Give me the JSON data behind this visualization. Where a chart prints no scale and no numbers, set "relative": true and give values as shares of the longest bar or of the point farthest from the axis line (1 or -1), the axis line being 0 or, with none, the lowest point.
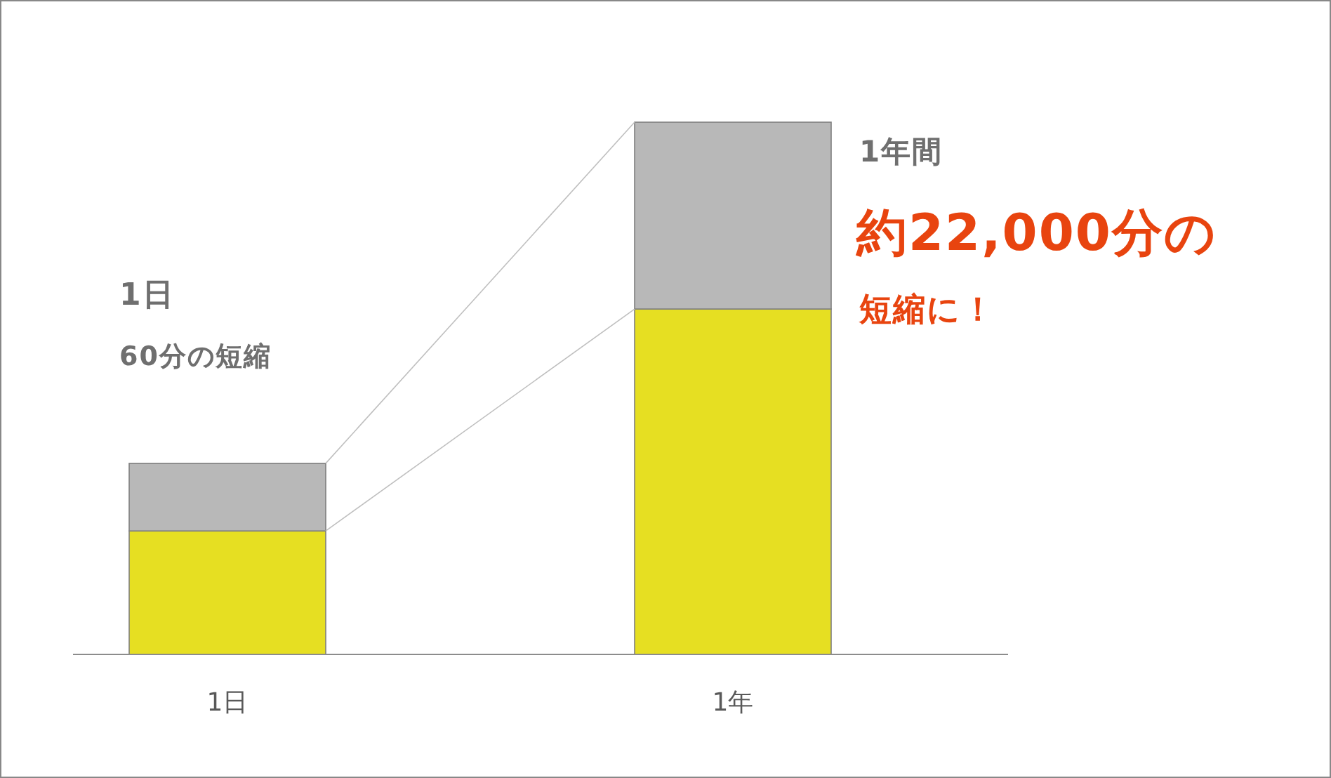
{
  "chart_data": {
    "type": "bar",
    "stacked": true,
    "relative": true,
    "categories": [
      "1日",
      "1年"
    ],
    "series": [
      {
        "color": "#e6df22",
        "values": [
          0.232,
          0.649
        ]
      },
      {
        "color": "#b8b8b8",
        "values": [
          0.127,
          0.351
        ]
      }
    ],
    "annotations": [
      "1日",
      "60分の短縮",
      "1年間",
      "約22,000分の",
      "短縮に！"
    ]
  }
}
